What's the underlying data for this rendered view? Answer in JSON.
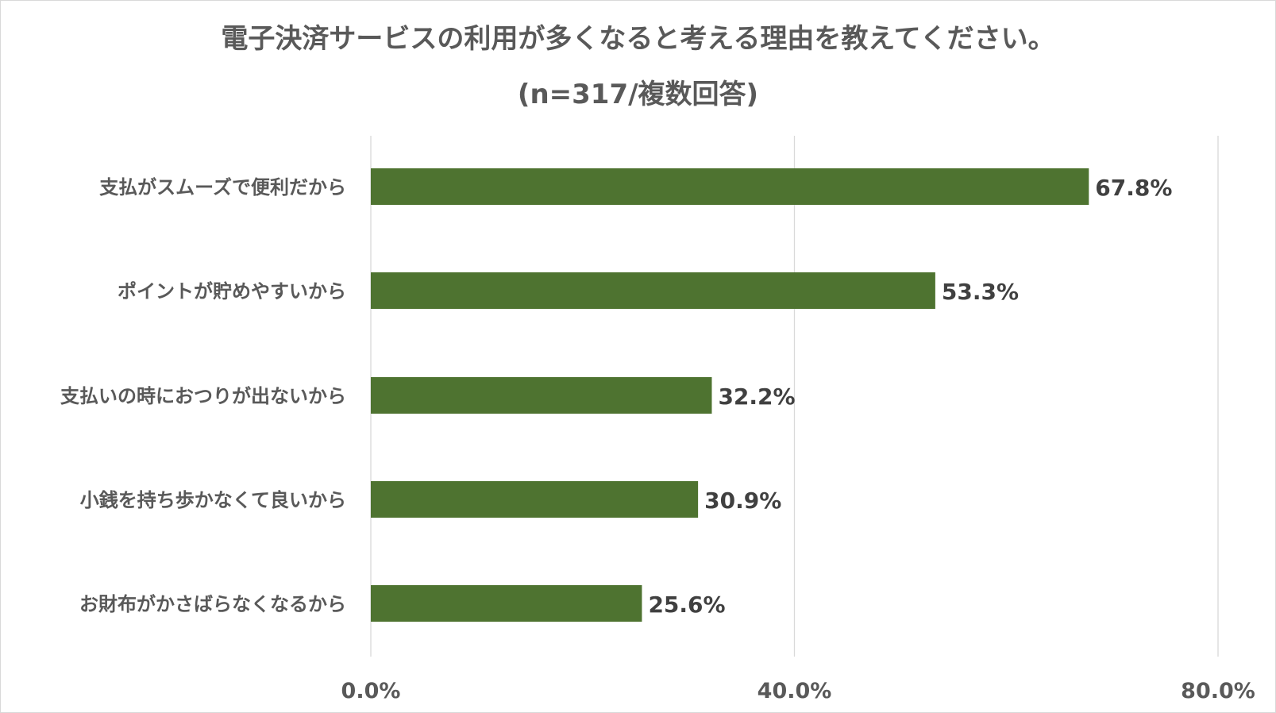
{
  "chart_data": {
    "type": "bar",
    "orientation": "horizontal",
    "title": "電子決済サービスの利用が多くなると考える理由を教えてください。",
    "subtitle": "(n=317/複数回答)",
    "categories": [
      "支払がスムーズで便利だから",
      "ポイントが貯めやすいから",
      "支払いの時におつりが出ないから",
      "小銭を持ち歩かなくて良いから",
      "お財布がかさばらなくなるから"
    ],
    "values": [
      67.8,
      53.3,
      32.2,
      30.9,
      25.6
    ],
    "value_labels": [
      "67.8%",
      "53.3%",
      "32.2%",
      "30.9%",
      "25.6%"
    ],
    "xlim": [
      0,
      80
    ],
    "ticks": [
      0,
      40,
      80
    ],
    "tick_labels": [
      "0.0%",
      "40.0%",
      "80.0%"
    ],
    "grid": true,
    "legend": "none",
    "bar_color": "#4e7330",
    "grid_color": "#d9d9d9",
    "text_color": "#595959"
  }
}
